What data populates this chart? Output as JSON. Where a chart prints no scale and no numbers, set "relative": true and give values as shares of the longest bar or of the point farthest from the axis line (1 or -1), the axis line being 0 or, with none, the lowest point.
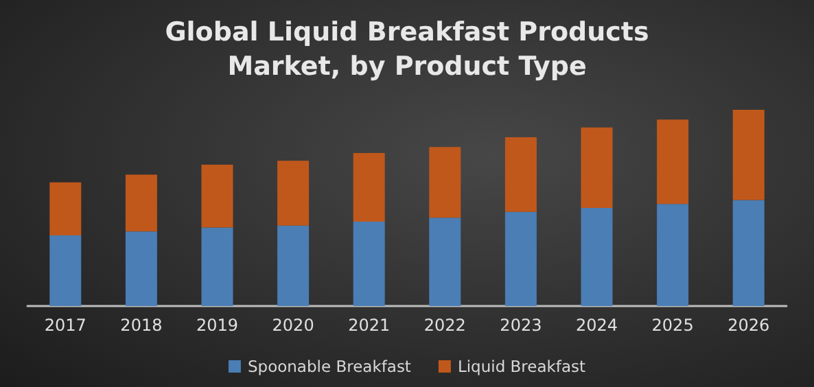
{
  "chart_data": {
    "type": "bar",
    "title": "Global Liquid Breakfast Products\nMarket, by Product Type",
    "categories": [
      "2017",
      "2018",
      "2019",
      "2020",
      "2021",
      "2022",
      "2023",
      "2024",
      "2025",
      "2026"
    ],
    "series": [
      {
        "name": "Spoonable Breakfast",
        "color": "#4a7eb5",
        "values": [
          0.36,
          0.38,
          0.4,
          0.41,
          0.43,
          0.45,
          0.48,
          0.5,
          0.52,
          0.54
        ]
      },
      {
        "name": "Liquid Breakfast",
        "color": "#c0581b",
        "values": [
          0.27,
          0.29,
          0.32,
          0.33,
          0.35,
          0.36,
          0.38,
          0.41,
          0.43,
          0.46
        ]
      }
    ],
    "stacked": true,
    "relative": true,
    "legend": "bottom"
  }
}
